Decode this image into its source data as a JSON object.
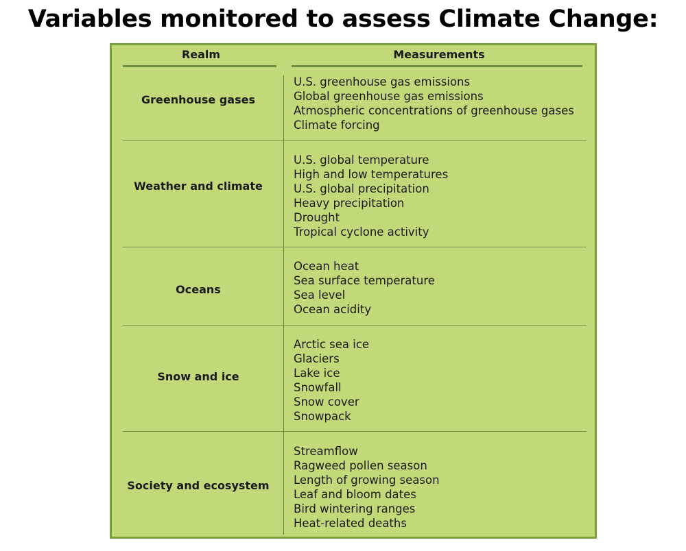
{
  "title": "Variables monitored to assess Climate Change:",
  "table": {
    "headers": {
      "realm": "Realm",
      "measurements": "Measurements"
    },
    "rows": [
      {
        "realm": "Greenhouse gases",
        "measurements": [
          "U.S. greenhouse gas emissions",
          "Global greenhouse gas emissions",
          "Atmospheric concentrations of greenhouse gases",
          "Climate forcing"
        ]
      },
      {
        "realm": "Weather and climate",
        "measurements": [
          "U.S. global temperature",
          "High and low temperatures",
          "U.S. global precipitation",
          "Heavy precipitation",
          "Drought",
          "Tropical cyclone activity"
        ]
      },
      {
        "realm": "Oceans",
        "measurements": [
          "Ocean heat",
          "Sea surface temperature",
          "Sea level",
          "Ocean acidity"
        ]
      },
      {
        "realm": "Snow and ice",
        "measurements": [
          "Arctic sea ice",
          "Glaciers",
          "Lake ice",
          "Snowfall",
          "Snow cover",
          "Snowpack"
        ]
      },
      {
        "realm": "Society and ecosystem",
        "measurements": [
          "Streamflow",
          "Ragweed pollen season",
          "Length of growing season",
          "Leaf and bloom dates",
          "Bird wintering ranges",
          "Heat-related deaths"
        ]
      }
    ]
  },
  "colors": {
    "table_fill": "#c2d97a",
    "table_border": "#7aa03a",
    "rule": "#6f8f45"
  }
}
